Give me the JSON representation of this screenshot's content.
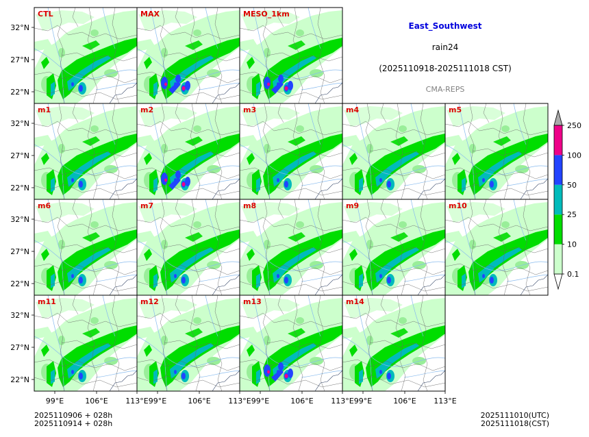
{
  "title": {
    "region": "East_Southwest",
    "variable": "rain24",
    "period": "(2025110918-2025111018 CST)",
    "system": "CMA-REPS",
    "region_color": "#0000dd",
    "system_color": "#808080"
  },
  "panels": [
    {
      "label": "CTL",
      "intensity": 1
    },
    {
      "label": "MAX",
      "intensity": 3
    },
    {
      "label": "MESO_1km",
      "intensity": 2
    },
    {
      "label": "m1",
      "intensity": 1
    },
    {
      "label": "m2",
      "intensity": 2
    },
    {
      "label": "m3",
      "intensity": 1
    },
    {
      "label": "m4",
      "intensity": 1
    },
    {
      "label": "m5",
      "intensity": 1
    },
    {
      "label": "m6",
      "intensity": 1
    },
    {
      "label": "m7",
      "intensity": 1
    },
    {
      "label": "m8",
      "intensity": 1
    },
    {
      "label": "m9",
      "intensity": 1
    },
    {
      "label": "m10",
      "intensity": 1
    },
    {
      "label": "m11",
      "intensity": 1
    },
    {
      "label": "m12",
      "intensity": 1
    },
    {
      "label": "m13",
      "intensity": 2
    },
    {
      "label": "m14",
      "intensity": 1
    }
  ],
  "axes": {
    "lat_ticks": [
      "32°N",
      "27°N",
      "22°N"
    ],
    "lon_ticks": [
      "99°E",
      "106°E",
      "113°E"
    ]
  },
  "colorbar": {
    "levels": [
      "0.1",
      "10",
      "25",
      "50",
      "100",
      "250"
    ],
    "colors": [
      "#ccffcc",
      "#00dd00",
      "#00bbbb",
      "#2244ff",
      "#ee0088"
    ],
    "extend_color": "#aaaaaa"
  },
  "footer": {
    "init_utc": "2025110906  +  028h",
    "init_cst": "2025110914  +  028h",
    "valid_utc": "2025111010(UTC)",
    "valid_cst": "2025111018(CST)"
  },
  "colors": {
    "label": "#dd0000",
    "light_rain": "#ccffcc",
    "moderate_rain": "#00dd00",
    "heavy_rain": "#00bbbb",
    "storm": "#2244ff",
    "extreme": "#ee0088",
    "river": "#88bbee",
    "border": "#666666"
  }
}
